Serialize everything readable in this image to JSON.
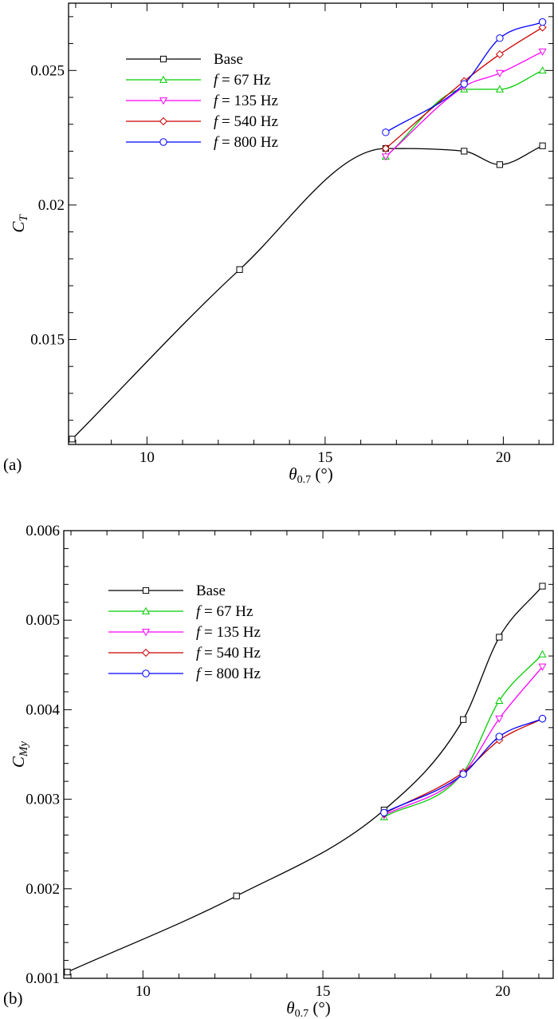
{
  "chart_data": [
    {
      "type": "line",
      "panel_label": "(a)",
      "xlabel": "θ0.7 (°)",
      "ylabel": "CT",
      "xlim": [
        7.8,
        21.4
      ],
      "ylim": [
        0.0111,
        0.0275
      ],
      "xticks": [
        10,
        15,
        20
      ],
      "yticks": [
        0.015,
        0.02,
        0.025
      ],
      "ytick_labels": [
        "0.015",
        "0.02",
        "0.025"
      ],
      "legend_position": "top-left",
      "series": [
        {
          "name": "Base",
          "color": "#000000",
          "marker": "square",
          "x": [
            7.9,
            12.6,
            16.7,
            18.9,
            19.9,
            21.1
          ],
          "y": [
            0.0113,
            0.0176,
            0.0221,
            0.022,
            0.0215,
            0.0222
          ]
        },
        {
          "name": "f = 67 Hz",
          "color": "#00cc00",
          "marker": "triangle-up",
          "x": [
            16.7,
            18.9,
            19.9,
            21.1
          ],
          "y": [
            0.0218,
            0.0243,
            0.0243,
            0.025
          ]
        },
        {
          "name": "f = 135 Hz",
          "color": "#ff00ff",
          "marker": "triangle-down",
          "x": [
            16.7,
            18.9,
            19.9,
            21.1
          ],
          "y": [
            0.0218,
            0.0244,
            0.0249,
            0.0257
          ]
        },
        {
          "name": "f = 540 Hz",
          "color": "#cc0000",
          "marker": "diamond",
          "x": [
            16.7,
            18.9,
            19.9,
            21.1
          ],
          "y": [
            0.0221,
            0.0246,
            0.0256,
            0.0266
          ]
        },
        {
          "name": "f = 800 Hz",
          "color": "#0000ff",
          "marker": "circle",
          "x": [
            16.7,
            18.9,
            19.9,
            21.1
          ],
          "y": [
            0.0227,
            0.0245,
            0.0262,
            0.0268
          ]
        }
      ]
    },
    {
      "type": "line",
      "panel_label": "(b)",
      "xlabel": "θ0.7 (°)",
      "ylabel": "CMy",
      "xlim": [
        7.8,
        21.4
      ],
      "ylim": [
        0.001,
        0.006
      ],
      "xticks": [
        10,
        15,
        20
      ],
      "yticks": [
        0.001,
        0.002,
        0.003,
        0.004,
        0.005,
        0.006
      ],
      "ytick_labels": [
        "0.001",
        "0.002",
        "0.003",
        "0.004",
        "0.005",
        "0.006"
      ],
      "legend_position": "top-left",
      "series": [
        {
          "name": "Base",
          "color": "#000000",
          "marker": "square",
          "x": [
            7.9,
            12.6,
            16.7,
            18.9,
            19.9,
            21.1
          ],
          "y": [
            0.00107,
            0.00192,
            0.00288,
            0.00389,
            0.00481,
            0.00538
          ]
        },
        {
          "name": "f = 67 Hz",
          "color": "#00cc00",
          "marker": "triangle-up",
          "x": [
            16.7,
            18.9,
            19.9,
            21.1
          ],
          "y": [
            0.0028,
            0.0033,
            0.0041,
            0.00462
          ]
        },
        {
          "name": "f = 135 Hz",
          "color": "#ff00ff",
          "marker": "triangle-down",
          "x": [
            16.7,
            18.9,
            19.9,
            21.1
          ],
          "y": [
            0.00282,
            0.00329,
            0.0039,
            0.00448
          ]
        },
        {
          "name": "f = 540 Hz",
          "color": "#cc0000",
          "marker": "diamond",
          "x": [
            16.7,
            18.9,
            19.9,
            21.1
          ],
          "y": [
            0.00284,
            0.0033,
            0.00366,
            0.0039
          ]
        },
        {
          "name": "f = 800 Hz",
          "color": "#0000ff",
          "marker": "circle",
          "x": [
            16.7,
            18.9,
            19.9,
            21.1
          ],
          "y": [
            0.00285,
            0.00328,
            0.0037,
            0.0039
          ]
        }
      ]
    }
  ]
}
